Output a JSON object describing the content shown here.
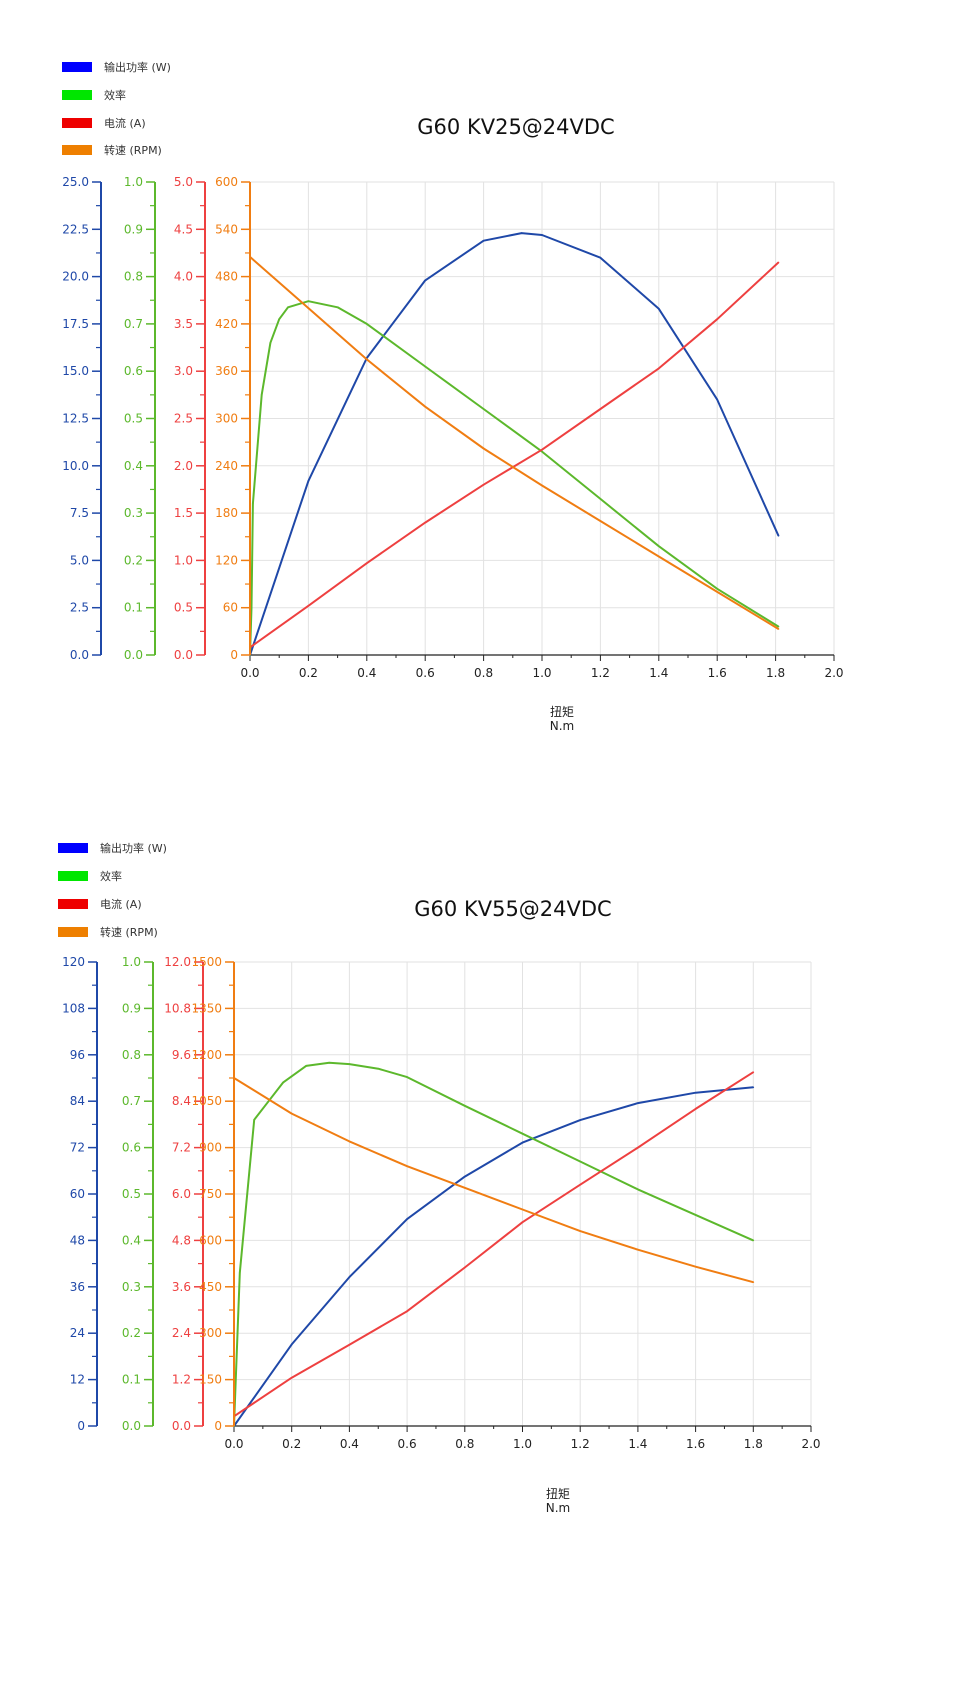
{
  "legend_colors": [
    "#0000ff",
    "#00e600",
    "#ee0000",
    "#ee7f00"
  ],
  "line_colors": [
    "#1f48a8",
    "#5cb82c",
    "#ee4040",
    "#f07d12"
  ],
  "chart_data": [
    {
      "type": "line",
      "title": "G60 KV25@24VDC",
      "xlabel": "扭矩",
      "xunit": "N.m",
      "xlim": [
        0,
        2.0
      ],
      "xticks": [
        "0.0",
        "0.2",
        "0.4",
        "0.6",
        "0.8",
        "1.0",
        "1.2",
        "1.4",
        "1.6",
        "1.8",
        "2.0"
      ],
      "grid": true,
      "legend_placement": "top-left",
      "series": [
        {
          "name": "输出功率 (W)",
          "ylim": [
            0,
            25
          ],
          "yticks": [
            "0.0",
            "2.5",
            "5.0",
            "7.5",
            "10.0",
            "12.5",
            "15.0",
            "17.5",
            "20.0",
            "22.5",
            "25.0"
          ],
          "x": [
            0,
            0.2,
            0.4,
            0.6,
            0.8,
            0.93,
            1.0,
            1.2,
            1.4,
            1.6,
            1.81
          ],
          "y": [
            0,
            9.2,
            15.7,
            19.8,
            21.9,
            22.3,
            22.2,
            21.0,
            18.3,
            13.5,
            6.3
          ]
        },
        {
          "name": "效率",
          "ylim": [
            0,
            1
          ],
          "yticks": [
            "0.0",
            "0.1",
            "0.2",
            "0.3",
            "0.4",
            "0.5",
            "0.6",
            "0.7",
            "0.8",
            "0.9",
            "1.0"
          ],
          "x": [
            0,
            0.005,
            0.01,
            0.04,
            0.07,
            0.1,
            0.13,
            0.2,
            0.3,
            0.4,
            0.6,
            0.8,
            1.0,
            1.2,
            1.4,
            1.6,
            1.81
          ],
          "y": [
            0,
            0.1,
            0.32,
            0.55,
            0.66,
            0.71,
            0.735,
            0.748,
            0.735,
            0.7,
            0.61,
            0.52,
            0.43,
            0.33,
            0.23,
            0.14,
            0.06
          ]
        },
        {
          "name": "电流 (A)",
          "ylim": [
            0,
            5
          ],
          "yticks": [
            "0.0",
            "0.5",
            "1.0",
            "1.5",
            "2.0",
            "2.5",
            "3.0",
            "3.5",
            "4.0",
            "4.5",
            "5.0"
          ],
          "x": [
            0,
            0.2,
            0.4,
            0.6,
            0.8,
            1.0,
            1.2,
            1.4,
            1.6,
            1.81
          ],
          "y": [
            0.08,
            0.52,
            0.97,
            1.4,
            1.8,
            2.17,
            2.6,
            3.03,
            3.55,
            4.15
          ]
        },
        {
          "name": "转速 (RPM)",
          "ylim": [
            0,
            600
          ],
          "yticks": [
            "0",
            "60",
            "120",
            "180",
            "240",
            "300",
            "360",
            "420",
            "480",
            "540",
            "600"
          ],
          "x": [
            0,
            0.2,
            0.4,
            0.6,
            0.8,
            1.0,
            1.2,
            1.4,
            1.6,
            1.81
          ],
          "y": [
            505,
            440,
            375,
            315,
            262,
            215,
            170,
            125,
            80,
            33
          ]
        }
      ]
    },
    {
      "type": "line",
      "title": "G60 KV55@24VDC",
      "xlabel": "扭矩",
      "xunit": "N.m",
      "xlim": [
        0,
        2.0
      ],
      "xticks": [
        "0.0",
        "0.2",
        "0.4",
        "0.6",
        "0.8",
        "1.0",
        "1.2",
        "1.4",
        "1.6",
        "1.8",
        "2.0"
      ],
      "grid": true,
      "legend_placement": "top-left",
      "series": [
        {
          "name": "输出功率 (W)",
          "ylim": [
            0,
            120
          ],
          "yticks": [
            "0",
            "12",
            "24",
            "36",
            "48",
            "60",
            "72",
            "84",
            "96",
            "108",
            "120"
          ],
          "x": [
            0,
            0.2,
            0.4,
            0.6,
            0.8,
            1.0,
            1.2,
            1.4,
            1.6,
            1.8
          ],
          "y": [
            0,
            21.1,
            38.5,
            53.5,
            64.5,
            73.3,
            79.1,
            83.5,
            86.2,
            87.6
          ]
        },
        {
          "name": "效率",
          "ylim": [
            0,
            1
          ],
          "yticks": [
            "0.0",
            "0.1",
            "0.2",
            "0.3",
            "0.4",
            "0.5",
            "0.6",
            "0.7",
            "0.8",
            "0.9",
            "1.0"
          ],
          "x": [
            0,
            0.02,
            0.07,
            0.12,
            0.17,
            0.25,
            0.33,
            0.4,
            0.5,
            0.6,
            0.8,
            1.0,
            1.2,
            1.4,
            1.6,
            1.8
          ],
          "y": [
            0,
            0.33,
            0.66,
            0.7,
            0.74,
            0.776,
            0.783,
            0.78,
            0.77,
            0.752,
            0.69,
            0.63,
            0.57,
            0.51,
            0.455,
            0.4
          ]
        },
        {
          "name": "电流 (A)",
          "ylim": [
            0,
            12
          ],
          "yticks": [
            "0.0",
            "1.2",
            "2.4",
            "3.6",
            "4.8",
            "6.0",
            "7.2",
            "8.4",
            "9.6",
            "10.8",
            "12.0"
          ],
          "x": [
            0,
            0.2,
            0.4,
            0.6,
            0.8,
            1.0,
            1.2,
            1.4,
            1.6,
            1.8
          ],
          "y": [
            0.25,
            1.25,
            2.1,
            2.97,
            4.1,
            5.27,
            6.24,
            7.2,
            8.2,
            9.15
          ]
        },
        {
          "name": "转速 (RPM)",
          "ylim": [
            0,
            1500
          ],
          "yticks": [
            "0",
            "150",
            "300",
            "450",
            "600",
            "750",
            "900",
            "1050",
            "1200",
            "1350",
            "1500"
          ],
          "x": [
            0,
            0.2,
            0.4,
            0.6,
            0.8,
            1.0,
            1.2,
            1.4,
            1.6,
            1.8
          ],
          "y": [
            1125,
            1010,
            920,
            840,
            770,
            700,
            630,
            570,
            515,
            465
          ]
        }
      ]
    }
  ]
}
